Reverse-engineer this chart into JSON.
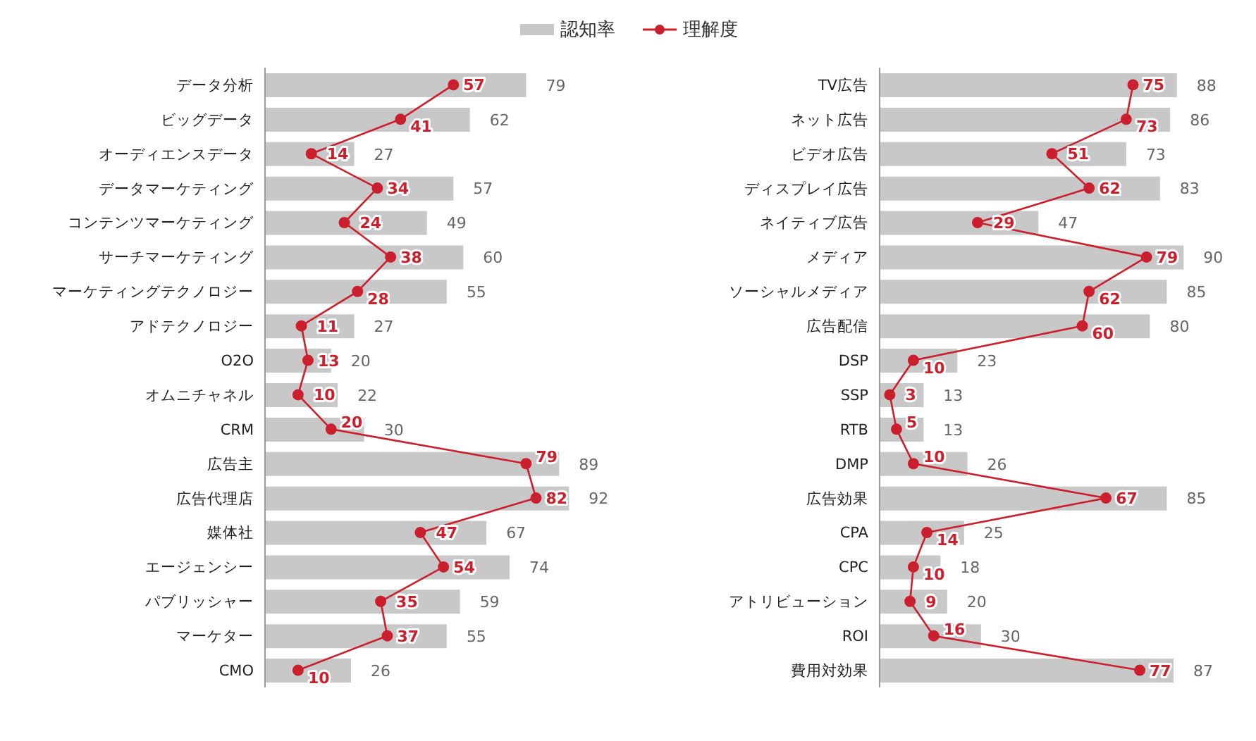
{
  "chart_data": [
    {
      "type": "bar",
      "orientation": "horizontal",
      "legend": "top",
      "data_labels": true,
      "tick_labels": "y",
      "marker": "circle",
      "categories": [
        "データ分析",
        "ビッグデータ",
        "オーディエンスデータ",
        "データマーケティング",
        "コンテンツマーケティング",
        "サーチマーケティング",
        "マーケティングテクノロジー",
        "アドテクノロジー",
        "O2O",
        "オムニチャネル",
        "CRM",
        "広告主",
        "広告代理店",
        "媒体社",
        "エージェンシー",
        "パブリッシャー",
        "マーケター",
        "CMO"
      ],
      "series": [
        {
          "name": "認知率",
          "type": "bar",
          "color": "#c8c8c8",
          "values": [
            79,
            62,
            27,
            57,
            49,
            60,
            55,
            27,
            20,
            22,
            30,
            89,
            92,
            67,
            74,
            59,
            55,
            26
          ]
        },
        {
          "name": "理解度",
          "type": "line",
          "color": "#cc1f2d",
          "values": [
            57,
            41,
            14,
            34,
            24,
            38,
            28,
            11,
            13,
            10,
            20,
            79,
            82,
            47,
            54,
            35,
            37,
            10
          ]
        }
      ]
    },
    {
      "type": "bar",
      "orientation": "horizontal",
      "data_labels": true,
      "tick_labels": "y",
      "marker": "circle",
      "categories": [
        "TV広告",
        "ネット広告",
        "ビデオ広告",
        "ディスプレイ広告",
        "ネイティブ広告",
        "メディア",
        "ソーシャルメディア",
        "広告配信",
        "DSP",
        "SSP",
        "RTB",
        "DMP",
        "広告効果",
        "CPA",
        "CPC",
        "アトリビューション",
        "ROI",
        "費用対効果"
      ],
      "series": [
        {
          "type": "bar",
          "color": "#c8c8c8",
          "values": [
            88,
            86,
            73,
            83,
            47,
            90,
            85,
            80,
            23,
            13,
            13,
            26,
            85,
            25,
            18,
            20,
            30,
            87
          ]
        },
        {
          "type": "line",
          "color": "#cc1f2d",
          "values": [
            75,
            73,
            51,
            62,
            29,
            79,
            62,
            60,
            10,
            3,
            5,
            10,
            67,
            14,
            10,
            9,
            16,
            77
          ]
        }
      ]
    }
  ]
}
